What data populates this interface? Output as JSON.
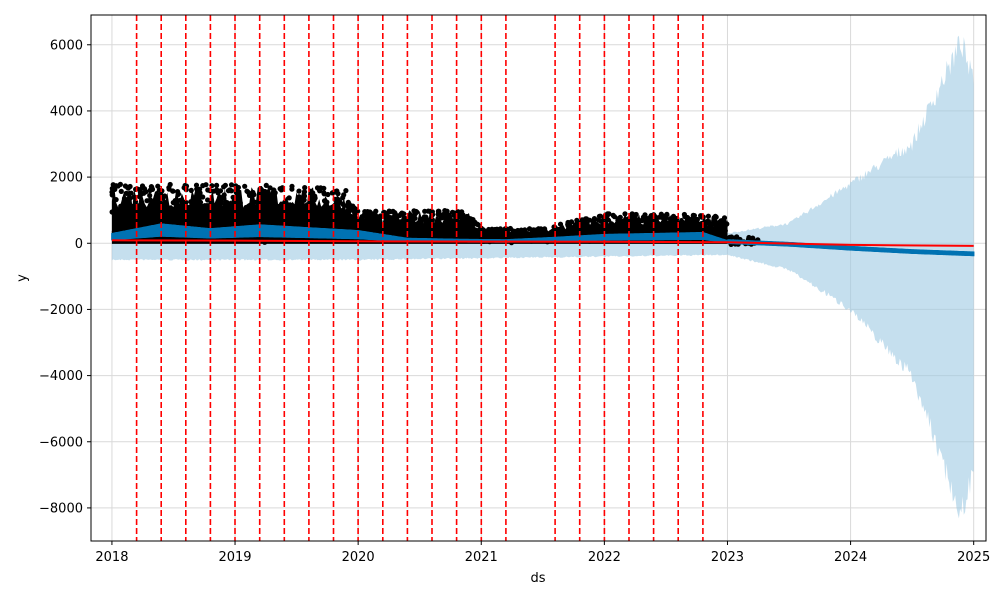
{
  "chart_data": {
    "type": "line",
    "title": "",
    "xlabel": "ds",
    "ylabel": "y",
    "x_start": 2017.83,
    "x_end": 2025.1,
    "ylim": [
      -9000,
      6900
    ],
    "xticks": [
      2018,
      2019,
      2020,
      2021,
      2022,
      2023,
      2024,
      2025
    ],
    "xtick_labels": [
      "2018",
      "2019",
      "2020",
      "2021",
      "2022",
      "2023",
      "2024",
      "2025"
    ],
    "yticks": [
      -8000,
      -6000,
      -4000,
      -2000,
      0,
      2000,
      4000,
      6000
    ],
    "ytick_labels": [
      "−8000",
      "−6000",
      "−4000",
      "−2000",
      "0",
      "2000",
      "4000",
      "6000"
    ],
    "grid": true,
    "changepoints": [
      2018.2,
      2018.4,
      2018.6,
      2018.8,
      2019.0,
      2019.2,
      2019.4,
      2019.6,
      2019.8,
      2020.0,
      2020.2,
      2020.4,
      2020.6,
      2020.8,
      2021.0,
      2021.2,
      2021.6,
      2021.8,
      2022.0,
      2022.2,
      2022.4,
      2022.6,
      2022.8
    ],
    "trend": {
      "x": [
        2018.0,
        2019.0,
        2020.0,
        2021.0,
        2022.0,
        2023.0,
        2024.0,
        2025.0
      ],
      "y": [
        90,
        80,
        60,
        50,
        45,
        30,
        -50,
        -80
      ]
    },
    "forecast": {
      "x": [
        2018.0,
        2018.4,
        2018.8,
        2019.2,
        2019.6,
        2020.0,
        2020.4,
        2020.8,
        2021.2,
        2021.6,
        2022.0,
        2022.4,
        2022.8,
        2023.0,
        2023.5,
        2024.0,
        2024.5,
        2025.0
      ],
      "y": [
        200,
        400,
        300,
        380,
        320,
        260,
        100,
        80,
        70,
        120,
        180,
        200,
        220,
        50,
        -30,
        -150,
        -250,
        -320
      ]
    },
    "uncertainty": {
      "x": [
        2018.0,
        2020.0,
        2023.0,
        2023.5,
        2024.0,
        2024.5,
        2024.9,
        2025.0
      ],
      "lower": [
        -500,
        -500,
        -350,
        -800,
        -2000,
        -4000,
        -8200,
        -6800
      ],
      "upper": [
        350,
        350,
        300,
        600,
        1800,
        3000,
        6100,
        4800
      ]
    },
    "observed": {
      "x_range": [
        2018.0,
        2023.25
      ],
      "envelope_x": [
        2018.0,
        2019.5,
        2019.9,
        2020.0,
        2020.4,
        2020.9,
        2021.0,
        2021.5,
        2022.0,
        2022.5,
        2023.0
      ],
      "envelope_y_max": [
        1800,
        1750,
        1600,
        1000,
        1000,
        1000,
        450,
        450,
        900,
        900,
        800
      ]
    },
    "colors": {
      "forecast": "#0072b2",
      "uncertainty": "#9ec9e2",
      "trend": "#ff0000",
      "changepoint": "#ff0000",
      "observed": "#000000",
      "grid": "#d9d9d9"
    }
  }
}
